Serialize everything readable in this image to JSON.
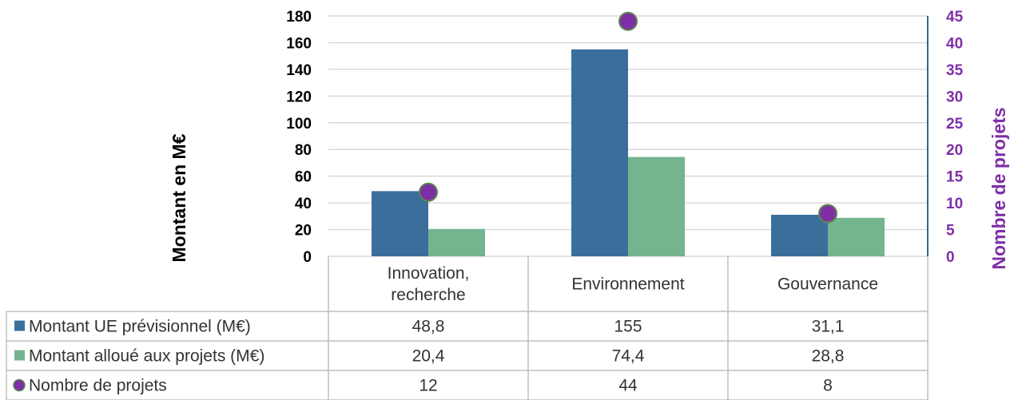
{
  "chart_data": {
    "type": "bar",
    "categories": [
      "Innovation,\nrecherche",
      "Environnement",
      "Gouvernance"
    ],
    "series": [
      {
        "name": "Montant UE prévisionnel (M€)",
        "values": [
          48.8,
          155,
          31.1
        ],
        "color": "#3a6f9c",
        "axis": "left",
        "kind": "bar"
      },
      {
        "name": "Montant alloué aux projets (M€)",
        "values": [
          20.4,
          74.4,
          28.8
        ],
        "color": "#74b48e",
        "axis": "left",
        "kind": "bar"
      },
      {
        "name": "Nombre de projets",
        "values": [
          12,
          44,
          8
        ],
        "color": "#7e2fa6",
        "edge_color": "#5a8a4a",
        "axis": "right",
        "kind": "marker"
      }
    ],
    "table_values": [
      [
        "48,8",
        "155",
        "31,1"
      ],
      [
        "20,4",
        "74,4",
        "28,8"
      ],
      [
        "12",
        "44",
        "8"
      ]
    ],
    "ylabel": "Montant en M€",
    "y2label": "Nombre de projets",
    "ylim": [
      0,
      180
    ],
    "yticks": [
      0,
      20,
      40,
      60,
      80,
      100,
      120,
      140,
      160,
      180
    ],
    "y2lim": [
      0,
      45
    ],
    "y2ticks": [
      0,
      5,
      10,
      15,
      20,
      25,
      30,
      35,
      40,
      45
    ],
    "grid": true,
    "legend": "data-table",
    "colors": {
      "left_axis_text": "#000000",
      "right_axis_text": "#7e2fa6",
      "right_axis_line": "#2f6a95",
      "grid": "#d9d9d9",
      "table_border": "#bfbfbf"
    }
  }
}
